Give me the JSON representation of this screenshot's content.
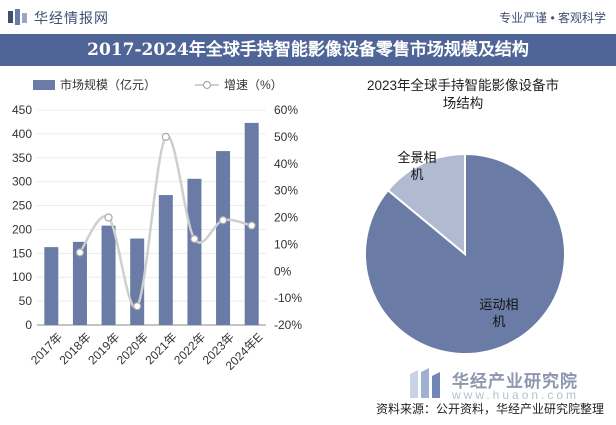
{
  "header": {
    "brand": "华经情报网",
    "slogan": "专业严谨 • 客观科学",
    "title": "2017-2024年全球手持智能影像设备零售市场规模及结构"
  },
  "chart_data": [
    {
      "type": "bar+line",
      "categories": [
        "2017年",
        "2018年",
        "2019年",
        "2020年",
        "2021年",
        "2022年",
        "2023年",
        "2024年E"
      ],
      "series": [
        {
          "name": "市场规模（亿元）",
          "kind": "bar",
          "axis": "left",
          "values": [
            163,
            174,
            208,
            181,
            272,
            306,
            364,
            423
          ]
        },
        {
          "name": "增速（%）",
          "kind": "line",
          "axis": "right",
          "values": [
            null,
            7,
            20,
            -13,
            50,
            12,
            19,
            17
          ]
        }
      ],
      "y_left": {
        "min": 0,
        "max": 450,
        "step": 50
      },
      "y_right": {
        "min": -20,
        "max": 60,
        "step": 10,
        "tick_labels": [
          "-20%",
          "-10%",
          "0%",
          "10%",
          "20%",
          "30%",
          "40%",
          "50%",
          "60%"
        ]
      },
      "legend_position": "top-left",
      "colors": {
        "bar": "#6a7ba5",
        "line": "#cfcfcf",
        "marker_fill": "#ffffff",
        "marker_stroke": "#a9a9a9"
      }
    },
    {
      "type": "pie",
      "title": "2023年全球手持智能影像设备市场结构",
      "slices": [
        {
          "label": "运动相机",
          "value": 86,
          "color": "#6a7ba5"
        },
        {
          "label": "全景相机",
          "value": 14,
          "color": "#b0bbd2"
        }
      ]
    }
  ],
  "footer": {
    "source": "资料来源：公开资料，华经产业研究院整理",
    "watermark_brand": "华经产业研究院",
    "watermark_url": "www.huaon.com"
  }
}
